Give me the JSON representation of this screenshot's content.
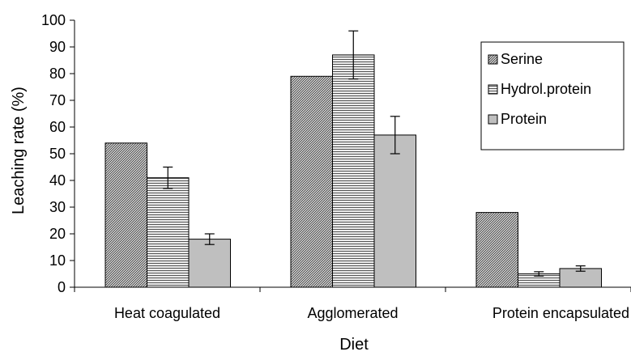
{
  "chart_data": {
    "type": "bar",
    "title": "",
    "xlabel": "Diet",
    "ylabel": "Leaching rate (%)",
    "ylim": [
      0,
      100
    ],
    "yticks": [
      0,
      10,
      20,
      30,
      40,
      50,
      60,
      70,
      80,
      90,
      100
    ],
    "grid": false,
    "legend_position": "right",
    "categories": [
      "Heat coagulated",
      "Agglomerated",
      "Protein encapsulated"
    ],
    "series": [
      {
        "name": "Serine",
        "pattern": "diagonal-hatch",
        "color": "#c8c8c8",
        "values": [
          54,
          79,
          28
        ],
        "errors": [
          null,
          null,
          null
        ]
      },
      {
        "name": "Hydrol.protein",
        "pattern": "horizontal-lines",
        "color": "#d0d0d0",
        "values": [
          41,
          87,
          5
        ],
        "errors": [
          4,
          9,
          0.8
        ]
      },
      {
        "name": "Protein",
        "pattern": "solid",
        "color": "#bfbfbf",
        "values": [
          18,
          57,
          7
        ],
        "errors": [
          2,
          7,
          1
        ]
      }
    ]
  }
}
